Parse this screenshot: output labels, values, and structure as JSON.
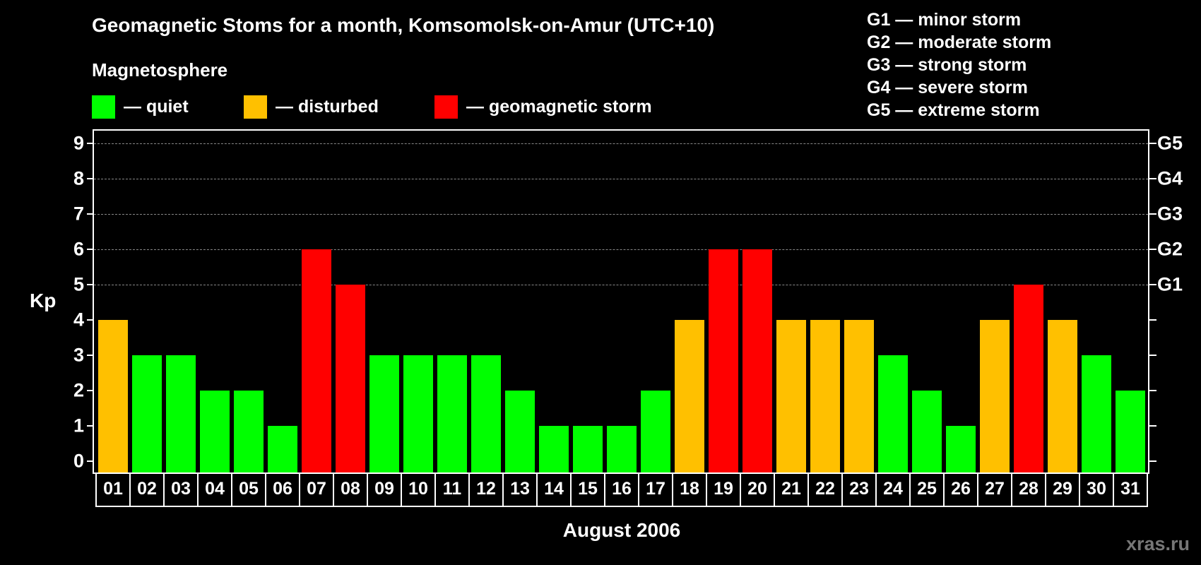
{
  "title": "Geomagnetic Stoms for a month, Komsomolsk-on-Amur (UTC+10)",
  "legend": {
    "heading": "Magnetosphere",
    "items": [
      {
        "label": "— quiet",
        "color": "#00ff00"
      },
      {
        "label": "— disturbed",
        "color": "#ffc000"
      },
      {
        "label": "— geomagnetic storm",
        "color": "#ff0000"
      }
    ]
  },
  "storm_scale": [
    "G1 — minor storm",
    "G2 — moderate storm",
    "G3 — strong storm",
    "G4 — severe storm",
    "G5 — extreme storm"
  ],
  "watermark": "xras.ru",
  "chart_data": {
    "type": "bar",
    "title": "Geomagnetic Stoms for a month, Komsomolsk-on-Amur (UTC+10)",
    "xlabel": "August 2006",
    "ylabel": "Kp",
    "ylim": [
      0,
      9
    ],
    "yticks": [
      0,
      1,
      2,
      3,
      4,
      5,
      6,
      7,
      8,
      9
    ],
    "right_axis_labels": [
      {
        "y": 5,
        "label": "G1"
      },
      {
        "y": 6,
        "label": "G2"
      },
      {
        "y": 7,
        "label": "G3"
      },
      {
        "y": 8,
        "label": "G4"
      },
      {
        "y": 9,
        "label": "G5"
      }
    ],
    "grid": {
      "y": [
        5,
        6,
        7,
        8,
        9
      ],
      "style": "dashed"
    },
    "categories": [
      "01",
      "02",
      "03",
      "04",
      "05",
      "06",
      "07",
      "08",
      "09",
      "10",
      "11",
      "12",
      "13",
      "14",
      "15",
      "16",
      "17",
      "18",
      "19",
      "20",
      "21",
      "22",
      "23",
      "24",
      "25",
      "26",
      "27",
      "28",
      "29",
      "30",
      "31"
    ],
    "values": [
      4,
      3,
      3,
      2,
      2,
      1,
      6,
      5,
      3,
      3,
      3,
      3,
      2,
      1,
      1,
      1,
      2,
      4,
      6,
      6,
      4,
      4,
      4,
      3,
      2,
      1,
      4,
      5,
      4,
      3,
      2
    ],
    "color_rule": {
      "quiet": "Kp<=3 #00ff00",
      "disturbed": "Kp=4 #ffc000",
      "storm": "Kp>=5 #ff0000"
    }
  }
}
